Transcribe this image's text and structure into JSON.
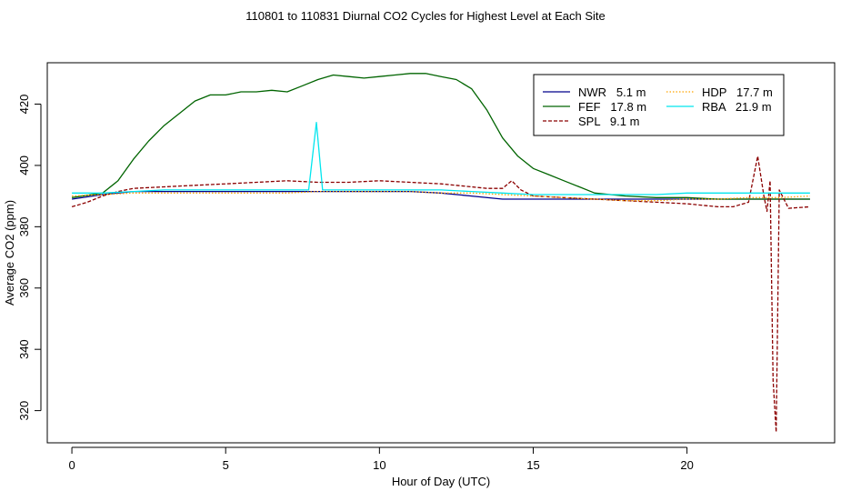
{
  "chart_data": {
    "type": "line",
    "title": "110801  to  110831 Diurnal CO2 Cycles for Highest Level at Each Site",
    "xlabel": "Hour of Day (UTC)",
    "ylabel": "Average CO2 (ppm)",
    "xlim": [
      -0.8,
      24.8
    ],
    "ylim": [
      309.5,
      433.5
    ],
    "x_ticks": [
      0,
      5,
      10,
      15,
      20
    ],
    "y_ticks": [
      320,
      340,
      360,
      380,
      400,
      420
    ],
    "x_tick_labels": [
      "0",
      "5",
      "10",
      "15",
      "20"
    ],
    "y_tick_labels": [
      "320",
      "340",
      "360",
      "380",
      "400",
      "420"
    ],
    "grid": false,
    "legend_position": "top-right",
    "legend": [
      {
        "label": "NWR   5.1 m",
        "color": "#00008b",
        "style": "solid"
      },
      {
        "label": "FEF   17.8 m",
        "color": "#006400",
        "style": "solid"
      },
      {
        "label": "SPL   9.1 m",
        "color": "#8b0000",
        "style": "dashed"
      },
      {
        "label": "HDP   17.7 m",
        "color": "#ffa500",
        "style": "dotted"
      },
      {
        "label": "RBA   21.9 m",
        "color": "#00e5ee",
        "style": "solid"
      }
    ],
    "series": [
      {
        "name": "NWR   5.1 m",
        "color": "#00008b",
        "style": "solid",
        "x": [
          0,
          1,
          2,
          3,
          4,
          5,
          6,
          7,
          8,
          9,
          10,
          11,
          12,
          13,
          14,
          15,
          16,
          17,
          18,
          19,
          20,
          21,
          22,
          23,
          24
        ],
        "y": [
          389,
          390.5,
          391.5,
          391.5,
          391.5,
          391.5,
          391.5,
          391.5,
          391.5,
          391.5,
          391.5,
          391.5,
          391,
          390,
          389,
          389,
          389,
          389,
          389,
          389,
          389,
          389,
          389,
          389,
          389
        ]
      },
      {
        "name": "FEF   17.8 m",
        "color": "#006400",
        "style": "solid",
        "x": [
          0,
          1,
          1.5,
          2,
          2.5,
          3,
          3.5,
          4,
          4.5,
          5,
          5.5,
          6,
          6.5,
          7,
          7.5,
          8,
          8.5,
          9,
          9.5,
          10,
          10.5,
          11,
          11.5,
          12,
          12.5,
          13,
          13.5,
          14,
          14.5,
          15,
          15.5,
          16,
          16.5,
          17,
          18,
          19,
          20,
          21,
          22,
          23,
          24
        ],
        "y": [
          389.5,
          391,
          395,
          402,
          408,
          413,
          417,
          421,
          423,
          423,
          424,
          424,
          424.5,
          424,
          426,
          428,
          429.5,
          429,
          428.5,
          429,
          429.5,
          430,
          430,
          429,
          428,
          425,
          418,
          409,
          403,
          399,
          397,
          395,
          393,
          391,
          390,
          389.5,
          389.5,
          389,
          389,
          389,
          389
        ]
      },
      {
        "name": "SPL   9.1 m",
        "color": "#8b0000",
        "style": "dashed",
        "x": [
          0,
          0.5,
          1,
          1.5,
          2,
          3,
          4,
          5,
          6,
          7,
          8,
          9,
          10,
          11,
          12,
          13,
          13.5,
          14,
          14.3,
          14.6,
          15,
          16,
          17,
          18,
          19,
          20,
          21,
          21.5,
          22,
          22.3,
          22.5,
          22.6,
          22.7,
          22.8,
          22.9,
          23.0,
          23.3,
          24
        ],
        "y": [
          386.5,
          388,
          390,
          391.5,
          392.5,
          393,
          393.5,
          394,
          394.5,
          395,
          394.5,
          394.5,
          395,
          394.5,
          394,
          393,
          392.5,
          392.5,
          395,
          392,
          390,
          389.5,
          389,
          388.5,
          388,
          387.5,
          386.5,
          386.5,
          388,
          403,
          390,
          385,
          395,
          330,
          313,
          392,
          386,
          386.5
        ]
      },
      {
        "name": "HDP   17.7 m",
        "color": "#ffa500",
        "style": "dotted",
        "x": [
          0,
          1,
          2,
          3,
          4,
          5,
          6,
          7,
          8,
          9,
          10,
          11,
          12,
          13,
          14,
          15,
          16,
          17,
          18,
          19,
          20,
          21,
          22,
          23,
          24
        ],
        "y": [
          390,
          390.5,
          391,
          391,
          391,
          391,
          391,
          391,
          391.5,
          391.5,
          391.5,
          391.5,
          391,
          391,
          390.5,
          390,
          389.5,
          389,
          388.5,
          388.5,
          389,
          389,
          389.5,
          389.5,
          390
        ]
      },
      {
        "name": "RBA   21.9 m",
        "color": "#00e5ee",
        "style": "solid",
        "x": [
          0,
          1,
          2,
          3,
          4,
          5,
          6,
          7,
          7.7,
          7.95,
          8.15,
          9,
          10,
          11,
          12,
          13,
          14,
          15,
          16,
          17,
          18,
          19,
          20,
          21,
          22,
          23,
          24
        ],
        "y": [
          391,
          391,
          391.5,
          392,
          392,
          392,
          392,
          392,
          392,
          414,
          392,
          392,
          392,
          392,
          392,
          391.5,
          391,
          390.5,
          390.5,
          390.5,
          390.5,
          390.5,
          391,
          391,
          391,
          391,
          391
        ]
      }
    ]
  }
}
